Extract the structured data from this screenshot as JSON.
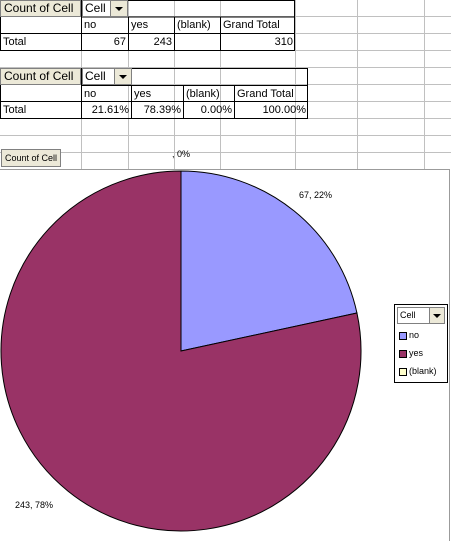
{
  "table1": {
    "data_field": "Count of Cell",
    "column_field": "Cell",
    "columns": [
      "no",
      "yes",
      "(blank)",
      "Grand Total"
    ],
    "row_label": "Total",
    "values": [
      "67",
      "243",
      "",
      "310"
    ]
  },
  "table2": {
    "data_field": "Count of Cell",
    "column_field": "Cell",
    "columns": [
      "no",
      "yes",
      "(blank)",
      "Grand Total"
    ],
    "row_label": "Total",
    "values": [
      "21.61%",
      "78.39%",
      "0.00%",
      "100.00%"
    ]
  },
  "chart": {
    "field_button": "Count of Cell",
    "legend_field": "Cell"
  },
  "chart_data": {
    "type": "pie",
    "categories": [
      "no",
      "yes",
      "(blank)"
    ],
    "values": [
      67,
      243,
      0
    ],
    "data_labels": [
      "67, 22%",
      "243, 78%",
      ", 0%"
    ],
    "colors": [
      "#9999ff",
      "#993366",
      "#ffffcc"
    ],
    "legend_position": "right"
  }
}
